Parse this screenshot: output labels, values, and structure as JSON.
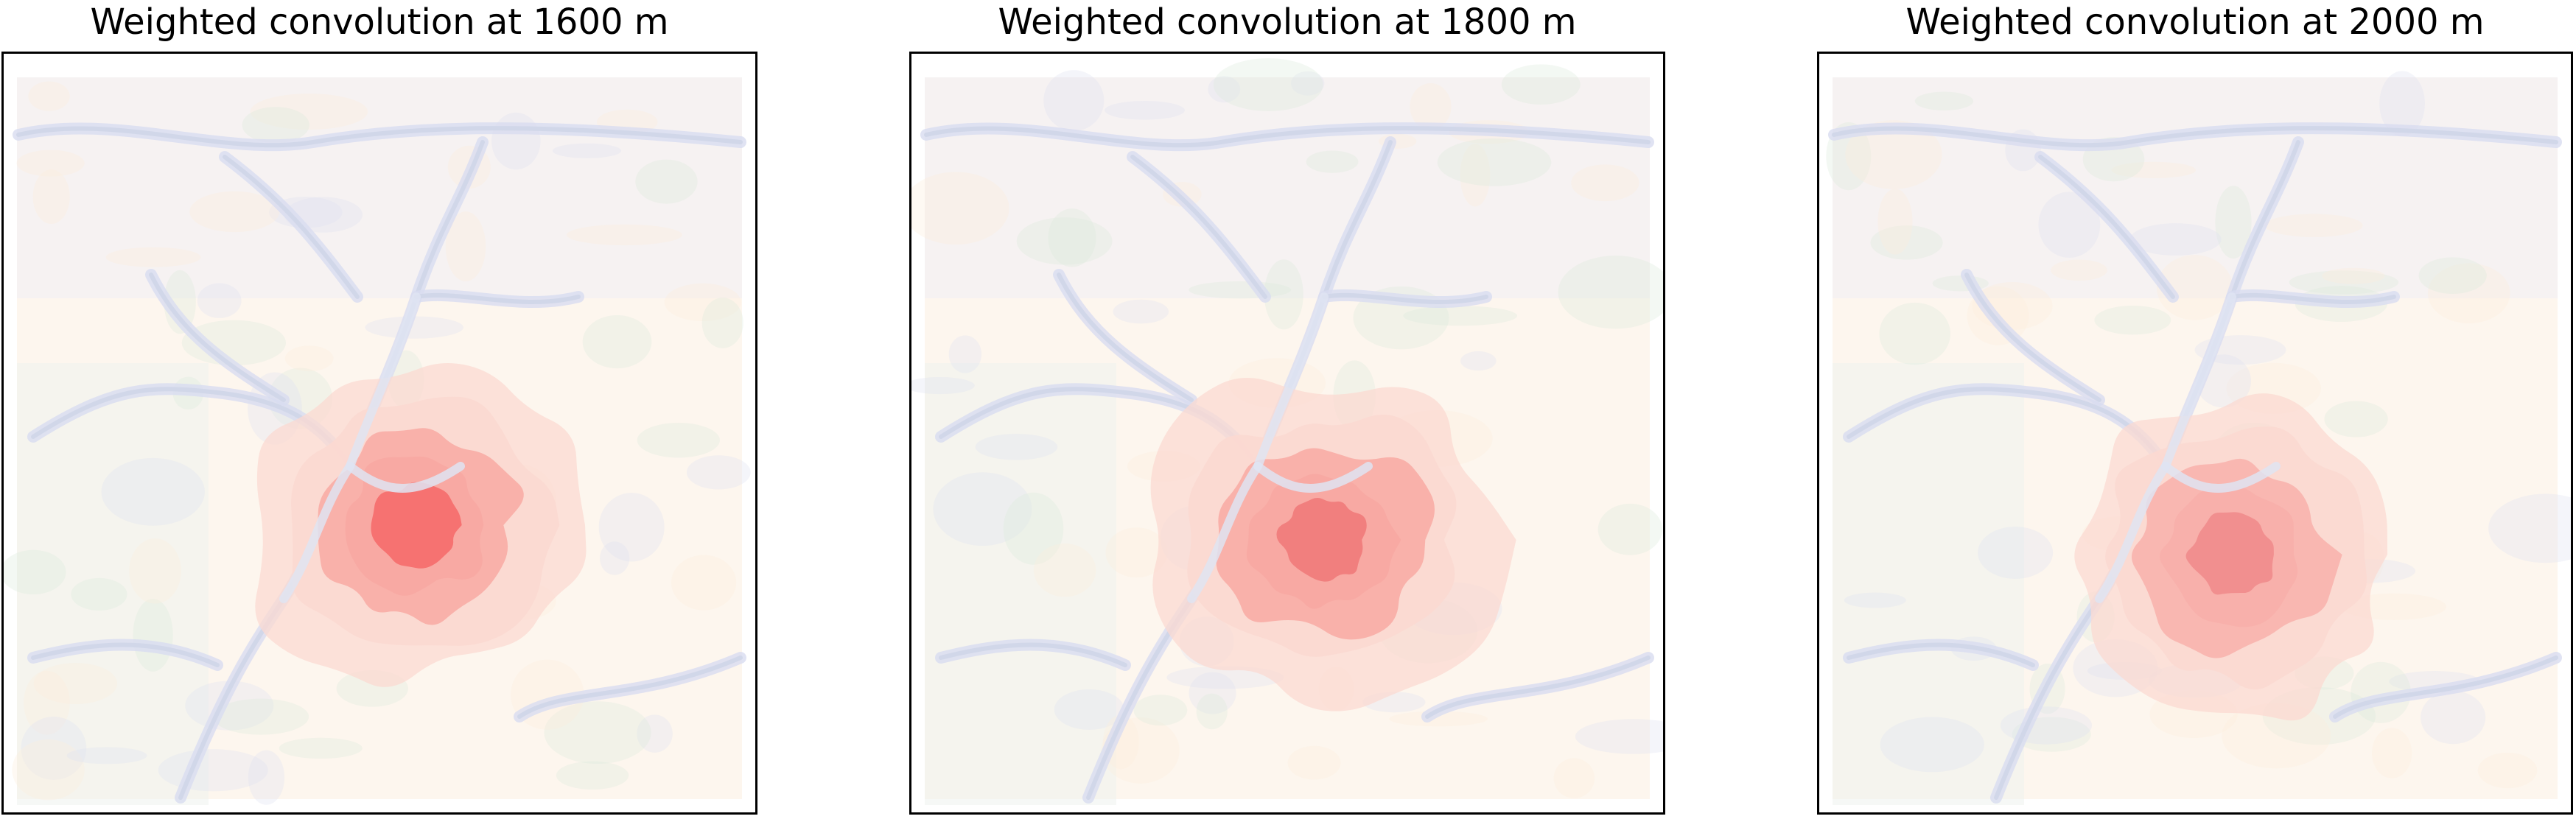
{
  "chart_data": [
    {
      "type": "heatmap",
      "title": "Weighted convolution at 1600 m",
      "xlabel": "",
      "ylabel": "",
      "grid": false,
      "colormap": [
        "#fdf3ea",
        "#fbd9d2",
        "#f8a9a3",
        "#f56b6b"
      ],
      "background_relief_colors": [
        "#dfe3f2",
        "#dcecdc",
        "#fbeedd"
      ],
      "intensity": "strongest"
    },
    {
      "type": "heatmap",
      "title": "Weighted convolution at 1800 m",
      "xlabel": "",
      "ylabel": "",
      "grid": false,
      "colormap": [
        "#fdf3ea",
        "#fbd9d2",
        "#f8a9a3",
        "#f07a7a"
      ],
      "background_relief_colors": [
        "#dfe3f2",
        "#dcecdc",
        "#fbeedd"
      ],
      "intensity": "medium"
    },
    {
      "type": "heatmap",
      "title": "Weighted convolution at 2000 m",
      "xlabel": "",
      "ylabel": "",
      "grid": false,
      "colormap": [
        "#fdf3ea",
        "#fbd9d2",
        "#f8b0ab",
        "#f08c8c"
      ],
      "background_relief_colors": [
        "#dfe3f2",
        "#dcecdc",
        "#fbeedd"
      ],
      "intensity": "weakest"
    }
  ]
}
